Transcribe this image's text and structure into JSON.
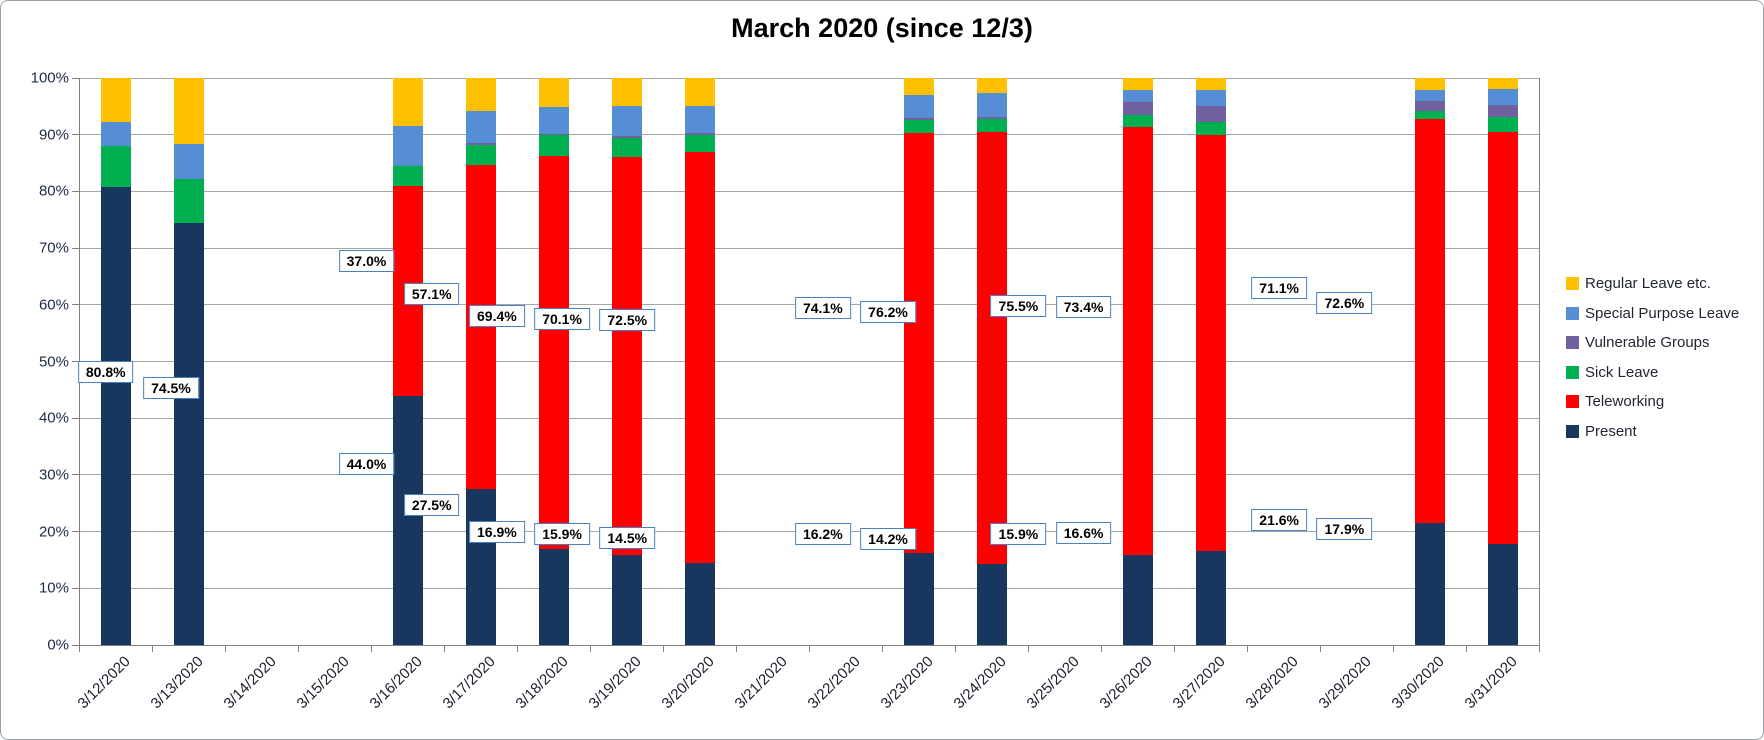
{
  "title": "March 2020 (since 12/3)",
  "y_axis": {
    "ticks": [
      "0%",
      "10%",
      "20%",
      "30%",
      "40%",
      "50%",
      "60%",
      "70%",
      "80%",
      "90%",
      "100%"
    ],
    "min": 0,
    "max": 100
  },
  "legend_order": [
    "Regular Leave etc.",
    "Special Purpose Leave",
    "Vulnerable Groups",
    "Sick Leave",
    "Teleworking",
    "Present"
  ],
  "chart_data": {
    "type": "bar",
    "stacked": true,
    "grid": true,
    "legend_position": "right",
    "title": "March 2020 (since 12/3)",
    "xlabel": "",
    "ylabel": "",
    "ylim": [
      0,
      100
    ],
    "categories": [
      "3/12/2020",
      "3/13/2020",
      "3/14/2020",
      "3/15/2020",
      "3/16/2020",
      "3/17/2020",
      "3/18/2020",
      "3/19/2020",
      "3/20/2020",
      "3/21/2020",
      "3/22/2020",
      "3/23/2020",
      "3/24/2020",
      "3/25/2020",
      "3/26/2020",
      "3/27/2020",
      "3/28/2020",
      "3/29/2020",
      "3/30/2020",
      "3/31/2020"
    ],
    "series": [
      {
        "name": "Present",
        "color": "#17375E",
        "values": [
          80.8,
          74.5,
          0,
          0,
          44.0,
          27.5,
          16.9,
          15.9,
          14.5,
          0,
          0,
          16.2,
          14.2,
          0,
          15.9,
          16.6,
          0,
          0,
          21.6,
          17.9
        ]
      },
      {
        "name": "Teleworking",
        "color": "#FF0000",
        "values": [
          0,
          0,
          0,
          0,
          37.0,
          57.1,
          69.4,
          70.1,
          72.5,
          0,
          0,
          74.1,
          76.2,
          0,
          75.5,
          73.4,
          0,
          0,
          71.1,
          72.6
        ]
      },
      {
        "name": "Sick Leave",
        "color": "#00B050",
        "values": [
          7.2,
          7.6,
          0,
          0,
          3.5,
          3.6,
          3.6,
          3.4,
          3.0,
          0,
          0,
          2.3,
          2.4,
          0,
          2.1,
          2.3,
          0,
          0,
          1.4,
          2.6
        ]
      },
      {
        "name": "Vulnerable Groups",
        "color": "#7060A0",
        "values": [
          0,
          0,
          0,
          0,
          0,
          0.4,
          0.3,
          0.3,
          0.3,
          0,
          0,
          0.4,
          0.3,
          0,
          2.3,
          2.7,
          0,
          0,
          1.8,
          2.1
        ]
      },
      {
        "name": "Special Purpose Leave",
        "color": "#558ED5",
        "values": [
          4.2,
          6.2,
          0,
          0,
          7.0,
          5.6,
          4.7,
          5.3,
          4.8,
          0,
          0,
          4.0,
          4.2,
          0,
          2.0,
          2.9,
          0,
          0,
          2.0,
          2.8
        ]
      },
      {
        "name": "Regular Leave etc.",
        "color": "#FFC000",
        "values": [
          7.8,
          11.7,
          0,
          0,
          8.5,
          5.8,
          5.1,
          5.0,
          4.9,
          0,
          0,
          3.0,
          2.7,
          0,
          2.2,
          2.1,
          0,
          0,
          2.1,
          2.0
        ]
      }
    ],
    "data_labels": {
      "Present": [
        "80.8%",
        "74.5%",
        null,
        null,
        "44.0%",
        "27.5%",
        "16.9%",
        "15.9%",
        "14.5%",
        null,
        null,
        "16.2%",
        "14.2%",
        null,
        "15.9%",
        "16.6%",
        null,
        null,
        "21.6%",
        "17.9%"
      ],
      "Teleworking": [
        null,
        null,
        null,
        null,
        "37.0%",
        "57.1%",
        "69.4%",
        "70.1%",
        "72.5%",
        null,
        null,
        "74.1%",
        "76.2%",
        null,
        "75.5%",
        "73.4%",
        null,
        null,
        "71.1%",
        "72.6%"
      ]
    }
  }
}
